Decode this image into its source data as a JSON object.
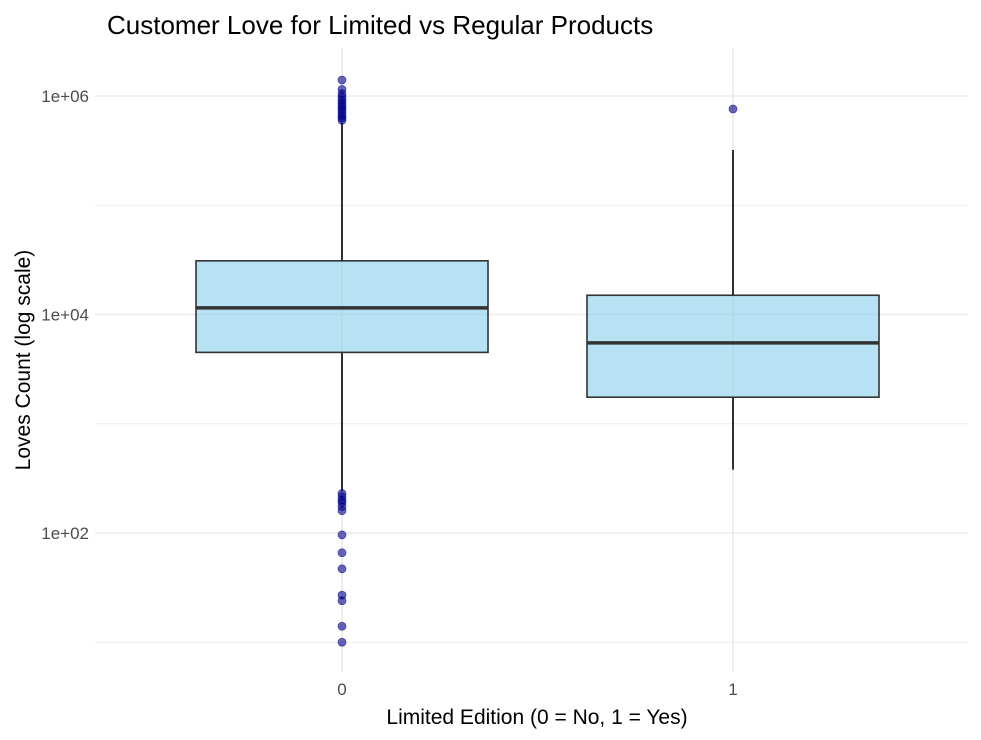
{
  "chart_data": {
    "type": "box",
    "title": "Customer Love for Limited vs Regular Products",
    "xlabel": "Limited Edition (0 = No, 1 = Yes)",
    "ylabel": "Loves Count (log scale)",
    "y_scale": "log10",
    "ylim": [
      7,
      2500000
    ],
    "y_major_ticks": [
      100,
      10000,
      1000000
    ],
    "y_major_tick_labels": [
      "1e+02",
      "1e+04",
      "1e+06"
    ],
    "y_minor_gridlines": [
      10,
      1000,
      100000
    ],
    "grid": true,
    "categories": [
      "0",
      "1"
    ],
    "boxes": [
      {
        "category": "0",
        "whisker_low": 240,
        "q1": 4500,
        "median": 11500,
        "q3": 31000,
        "whisker_high": 570000,
        "outliers": [
          1400000,
          1150000,
          1050000,
          980000,
          920000,
          870000,
          820000,
          780000,
          740000,
          700000,
          660000,
          630000,
          600000,
          230,
          215,
          200,
          190,
          175,
          160,
          96,
          66,
          47,
          27,
          24,
          14,
          10
        ]
      },
      {
        "category": "1",
        "whisker_low": 380,
        "q1": 1750,
        "median": 5500,
        "q3": 15000,
        "whisker_high": 320000,
        "outliers": [
          760000
        ]
      }
    ],
    "colors": {
      "box_fill": "#87CEEB",
      "box_border": "#333333",
      "outlier": "#00008B",
      "grid": "#ebebeb"
    }
  }
}
